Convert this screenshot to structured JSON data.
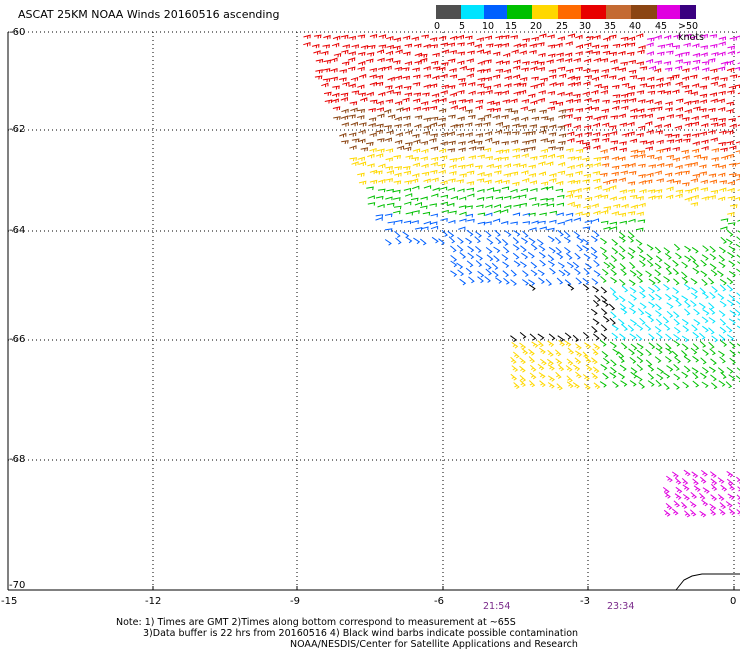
{
  "title": "ASCAT 25KM NOAA Winds 20160516 ascending",
  "legend": {
    "labels": [
      "0",
      "5",
      "10",
      "15",
      "20",
      "25",
      "30",
      "35",
      "40",
      "45",
      ">50 knots"
    ],
    "colors": [
      "#505050",
      "#00e4ff",
      "#0060ff",
      "#00c000",
      "#ffd800",
      "#ff6a00",
      "#e80000",
      "#c46a32",
      "#8b4513",
      "#e000e0",
      "#3a0080"
    ]
  },
  "axes": {
    "lat_labels": [
      "-60",
      "-62",
      "-64",
      "-66",
      "-68",
      "-70"
    ],
    "lon_labels": [
      "-15",
      "-12",
      "-9",
      "-6",
      "-3",
      "0"
    ]
  },
  "times": [
    "21:54",
    "23:34"
  ],
  "notes": {
    "line1": "Note: 1) Times are GMT 2)Times along bottom correspond to measurement at ~65S",
    "line2": "3)Data buffer is 22 hrs from 20160516 4) Black wind barbs indicate possible contamination",
    "line3": "NOAA/NESDIS/Center for Satellite Applications and Research"
  }
}
